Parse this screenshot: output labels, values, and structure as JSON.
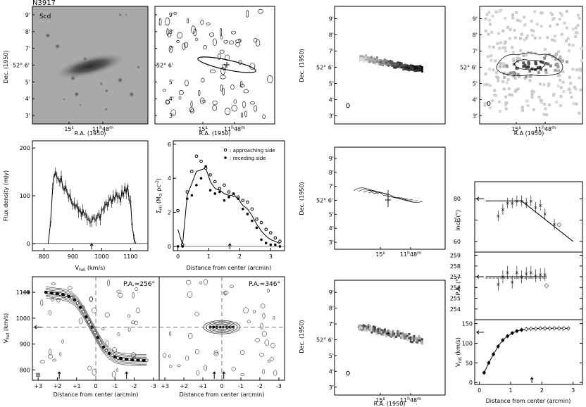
{
  "galaxy": {
    "name": "N3917",
    "type": "Scd"
  },
  "sky_axes": {
    "dec_label": "Dec. (1950)",
    "ra_label": "R.A. (1950)",
    "ra_label_alt": "R.A (1950)",
    "dec_ticks": [
      "3'",
      "4'",
      "5'",
      "52° 6'",
      "7'",
      "8'",
      "9'"
    ],
    "ra_ticks": [
      "15s",
      "11h48m"
    ]
  },
  "chart_data": [
    {
      "id": "optical-image",
      "type": "image",
      "title": "N3917",
      "subtitle": "Scd",
      "xlabel": "R.A. (1950)",
      "ylabel": "Dec. (1950)"
    },
    {
      "id": "hi-total-map",
      "type": "contour",
      "xlabel": "R.A. (1950)",
      "ylabel": "Dec. (1950)"
    },
    {
      "id": "hi-channel-map-top",
      "type": "contour",
      "ylabel": "Dec. (1950)"
    },
    {
      "id": "hi-column-density-map",
      "type": "heatmap",
      "xlabel": "R.A (1950)",
      "ylabel": "Dec. (1950)"
    },
    {
      "id": "global-profile",
      "type": "line",
      "xlabel": "Vhel (km/s)",
      "ylabel": "Flux density (mJy)",
      "xlim": [
        760,
        1160
      ],
      "ylim": [
        -15,
        215
      ],
      "xticks": [
        800,
        900,
        1000,
        1100
      ],
      "yticks": [
        0,
        100,
        200
      ],
      "systemic_arrow": 965,
      "x": [
        815,
        823,
        830,
        835,
        840,
        845,
        850,
        855,
        860,
        865,
        870,
        875,
        880,
        885,
        890,
        895,
        900,
        905,
        910,
        915,
        920,
        925,
        930,
        935,
        940,
        945,
        950,
        955,
        960,
        965,
        970,
        975,
        980,
        985,
        990,
        995,
        1000,
        1005,
        1010,
        1015,
        1020,
        1025,
        1030,
        1035,
        1040,
        1045,
        1050,
        1055,
        1060,
        1065,
        1070,
        1075,
        1080,
        1085,
        1090,
        1095,
        1100,
        1105,
        1112,
        1118
      ],
      "y": [
        0,
        45,
        115,
        140,
        150,
        138,
        135,
        128,
        140,
        118,
        112,
        120,
        108,
        96,
        102,
        88,
        80,
        84,
        76,
        82,
        66,
        72,
        58,
        70,
        60,
        62,
        50,
        52,
        44,
        46,
        55,
        52,
        48,
        58,
        62,
        50,
        72,
        70,
        76,
        86,
        78,
        90,
        96,
        84,
        100,
        92,
        106,
        96,
        100,
        88,
        110,
        100,
        118,
        105,
        120,
        92,
        88,
        40,
        10,
        0
      ]
    },
    {
      "id": "radial-surface-density",
      "type": "scatter",
      "xlabel": "Distance from center (arcmin)",
      "ylabel": "ΣHI (M⊙ pc⁻²)",
      "xlim": [
        -0.15,
        3.45
      ],
      "ylim": [
        -0.25,
        6.2
      ],
      "xticks": [
        0,
        1,
        2,
        3
      ],
      "yticks": [
        0,
        2,
        4,
        6
      ],
      "legend": "top-right",
      "center_arrow": 1.68,
      "series": [
        {
          "name": "approaching side",
          "marker": "open",
          "x": [
            0,
            0.15,
            0.3,
            0.45,
            0.6,
            0.75,
            0.9,
            1.05,
            1.2,
            1.35,
            1.5,
            1.65,
            1.8,
            1.95,
            2.1,
            2.25,
            2.4,
            2.55,
            2.7,
            2.85,
            3.0,
            3.15,
            3.3
          ],
          "y": [
            2.1,
            0.1,
            3.2,
            4.4,
            5.3,
            5.0,
            4.6,
            4.2,
            3.8,
            3.4,
            3.6,
            3.2,
            3.0,
            2.9,
            2.7,
            2.6,
            2.2,
            1.6,
            1.4,
            1.0,
            0.8,
            0.5,
            0.3
          ]
        },
        {
          "name": "receding side",
          "marker": "filled",
          "x": [
            0,
            0.15,
            0.3,
            0.45,
            0.6,
            0.75,
            0.9,
            1.05,
            1.2,
            1.35,
            1.5,
            1.65,
            1.8,
            1.95,
            2.1,
            2.25,
            2.4,
            2.55,
            2.7,
            2.85,
            3.0,
            3.15,
            3.3
          ],
          "y": [
            0,
            0,
            2.8,
            3.0,
            3.6,
            4.0,
            4.7,
            3.3,
            3.1,
            3.2,
            2.7,
            2.9,
            3.1,
            2.8,
            2.2,
            1.9,
            1.5,
            1.1,
            0.4,
            0.2,
            0.1,
            0.1,
            0
          ]
        },
        {
          "name": "",
          "marker": "line",
          "x": [
            0,
            0.15,
            0.3,
            0.45,
            0.6,
            0.75,
            0.9,
            1.05,
            1.2,
            1.35,
            1.5,
            1.65,
            1.8,
            1.95,
            2.1,
            2.25,
            2.4,
            2.55,
            2.7,
            2.85,
            3.0,
            3.15,
            3.3
          ],
          "y": [
            1.0,
            0.1,
            3.0,
            3.7,
            4.4,
            4.5,
            4.6,
            3.8,
            3.4,
            3.3,
            3.1,
            3.0,
            3.0,
            2.8,
            2.4,
            2.2,
            1.8,
            1.3,
            0.9,
            0.6,
            0.4,
            0.3,
            0.15
          ]
        }
      ]
    },
    {
      "id": "pv-major-axis",
      "type": "contour",
      "title": "P.A.=256°",
      "xlabel": "Distance from center (arcmin)",
      "ylabel": "Vhel (km/s)",
      "xlim": [
        3.3,
        -3.3
      ],
      "ylim": [
        760,
        1160
      ],
      "xticks": [
        3,
        2,
        1,
        0,
        -1,
        -2,
        -3
      ],
      "xticklabels": [
        "+3",
        "+2",
        "+1",
        "0",
        "-1",
        "-2",
        "-3"
      ],
      "yticks": [
        800,
        900,
        1000,
        1100
      ],
      "systemic_velocity": 965,
      "rotation_points": {
        "x": [
          2.6,
          2.45,
          2.3,
          2.15,
          2.0,
          1.85,
          1.7,
          1.55,
          1.4,
          1.25,
          1.1,
          0.95,
          0.8,
          0.65,
          0.5,
          0.35,
          0.2,
          0.05,
          -0.1,
          -0.25,
          -0.4,
          -0.55,
          -0.7,
          -0.85,
          -1.0,
          -1.15,
          -1.3,
          -1.45,
          -1.6,
          -1.75,
          -1.9,
          -2.05,
          -2.2,
          -2.35,
          -2.5,
          -2.65
        ],
        "y": [
          1100,
          1098,
          1097,
          1095,
          1094,
          1093,
          1091,
          1088,
          1084,
          1078,
          1070,
          1058,
          1042,
          1025,
          1005,
          985,
          965,
          945,
          925,
          905,
          888,
          875,
          864,
          856,
          850,
          846,
          844,
          842,
          841,
          840,
          839,
          839,
          838,
          838,
          837,
          837
        ]
      }
    },
    {
      "id": "pv-minor-axis",
      "type": "contour",
      "title": "P.A.=346°",
      "xlabel": "Distance from center (arcmin)",
      "xlim": [
        3.3,
        -3.3
      ],
      "ylim": [
        760,
        1160
      ],
      "xticks": [
        3,
        2,
        1,
        0,
        -1,
        -2,
        -3
      ],
      "xticklabels": [
        "+3",
        "+2",
        "+1",
        "0",
        "-1",
        "-2",
        "-3"
      ],
      "systemic_velocity": 965
    },
    {
      "id": "velocity-field-map",
      "type": "contour",
      "ylabel": "Dec. (1950)",
      "xticks": [
        "15s",
        "11h48m"
      ]
    },
    {
      "id": "channel-map-bottom",
      "type": "heatmap",
      "xlabel": "R.A. (1950)",
      "ylabel": "Dec. (1950)"
    },
    {
      "id": "inclination-fit",
      "type": "scatter",
      "ylabel": "Incl. (°)",
      "xlim": [
        -0.15,
        3.3
      ],
      "ylim": [
        55,
        88
      ],
      "yticks": [
        60,
        70,
        80
      ],
      "arrow_value": 80,
      "x": [
        0.6,
        0.75,
        0.9,
        1.05,
        1.2,
        1.35,
        1.5,
        1.65,
        1.8,
        1.95,
        2.1,
        2.4
      ],
      "y": [
        72,
        75,
        78,
        78,
        79,
        79,
        78,
        79,
        76,
        77,
        73,
        68
      ],
      "fit_x": [
        0.2,
        1.35,
        3.0
      ],
      "fit_y": [
        79,
        79,
        60
      ]
    },
    {
      "id": "position-angle-fit",
      "type": "scatter",
      "ylabel": "P.A. (°)",
      "xlim": [
        -0.15,
        3.3
      ],
      "ylim": [
        253,
        259.3
      ],
      "yticks": [
        254,
        255,
        256,
        257,
        258,
        259
      ],
      "arrow_value": 257,
      "x": [
        0.6,
        0.75,
        0.9,
        1.05,
        1.2,
        1.35,
        1.5,
        1.65,
        1.8,
        1.95,
        2.1
      ],
      "y": [
        256.3,
        257.0,
        257.4,
        256.5,
        257.4,
        257.0,
        257.3,
        257.4,
        257.1,
        257.2,
        257.2
      ],
      "fit": 257
    },
    {
      "id": "rotation-curve",
      "type": "line",
      "xlabel": "Distance from center (arcmin)",
      "ylabel": "Vrot (km/s)",
      "xlim": [
        -0.15,
        3.3
      ],
      "ylim": [
        -5,
        160
      ],
      "xticks": [
        0,
        1,
        2,
        3
      ],
      "yticks": [
        0,
        50,
        100,
        150
      ],
      "arrow_value": 128,
      "center_arrow": 1.68,
      "x": [
        0.15,
        0.3,
        0.45,
        0.6,
        0.75,
        0.9,
        1.05,
        1.2,
        1.35,
        1.5,
        1.65,
        1.8,
        1.95,
        2.1,
        2.25,
        2.4,
        2.55,
        2.7,
        2.85
      ],
      "y": [
        25,
        50,
        72,
        92,
        108,
        118,
        126,
        131,
        134,
        136,
        137,
        137,
        138,
        138,
        138,
        138,
        138,
        138,
        138
      ]
    }
  ]
}
